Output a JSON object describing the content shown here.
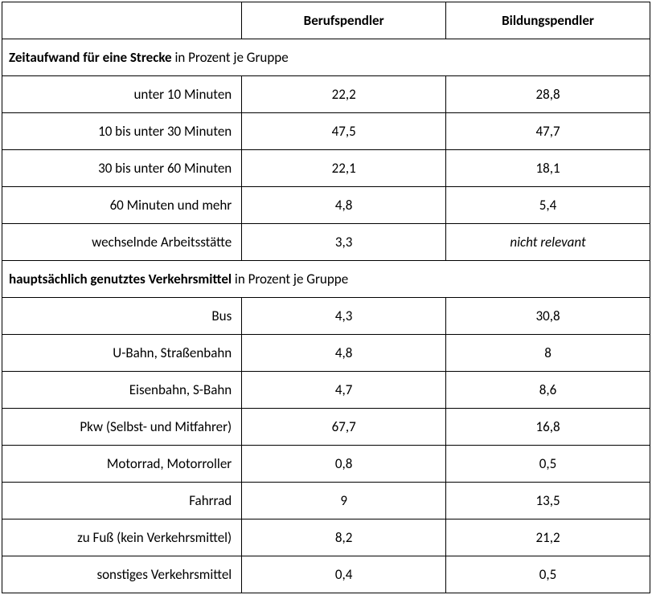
{
  "table": {
    "background_color": "#ffffff",
    "border_color": "#000000",
    "font_family": "Calibri, Arial, sans-serif",
    "font_size": 17,
    "columns": {
      "header_blank": "",
      "col1": "Berufspendler",
      "col2": "Bildungspendler"
    },
    "sections": [
      {
        "title_bold": "Zeitaufwand für eine Strecke",
        "title_rest": " in Prozent je Gruppe",
        "rows": [
          {
            "label": "unter 10 Minuten",
            "c1": "22,2",
            "c2": "28,8",
            "c2_italic": false
          },
          {
            "label": "10 bis unter 30 Minuten",
            "c1": "47,5",
            "c2": "47,7",
            "c2_italic": false
          },
          {
            "label": "30 bis unter 60 Minuten",
            "c1": "22,1",
            "c2": "18,1",
            "c2_italic": false
          },
          {
            "label": "60 Minuten und mehr",
            "c1": "4,8",
            "c2": "5,4",
            "c2_italic": false
          },
          {
            "label": "wechselnde Arbeitsstätte",
            "c1": "3,3",
            "c2": "nicht relevant",
            "c2_italic": true
          }
        ]
      },
      {
        "title_bold": "hauptsächlich genutztes Verkehrsmittel",
        "title_rest": " in Prozent je Gruppe",
        "rows": [
          {
            "label": "Bus",
            "c1": "4,3",
            "c2": "30,8",
            "c2_italic": false
          },
          {
            "label": "U-Bahn, Straßenbahn",
            "c1": "4,8",
            "c2": "8",
            "c2_italic": false
          },
          {
            "label": "Eisenbahn, S-Bahn",
            "c1": "4,7",
            "c2": "8,6",
            "c2_italic": false
          },
          {
            "label": "Pkw (Selbst- und Mitfahrer)",
            "c1": "67,7",
            "c2": "16,8",
            "c2_italic": false
          },
          {
            "label": "Motorrad, Motorroller",
            "c1": "0,8",
            "c2": "0,5",
            "c2_italic": false
          },
          {
            "label": "Fahrrad",
            "c1": "9",
            "c2": "13,5",
            "c2_italic": false
          },
          {
            "label": "zu Fuß (kein Verkehrsmittel)",
            "c1": "8,2",
            "c2": "21,2",
            "c2_italic": false
          },
          {
            "label": "sonstiges Verkehrsmittel",
            "c1": "0,4",
            "c2": "0,5",
            "c2_italic": false
          }
        ]
      }
    ]
  }
}
